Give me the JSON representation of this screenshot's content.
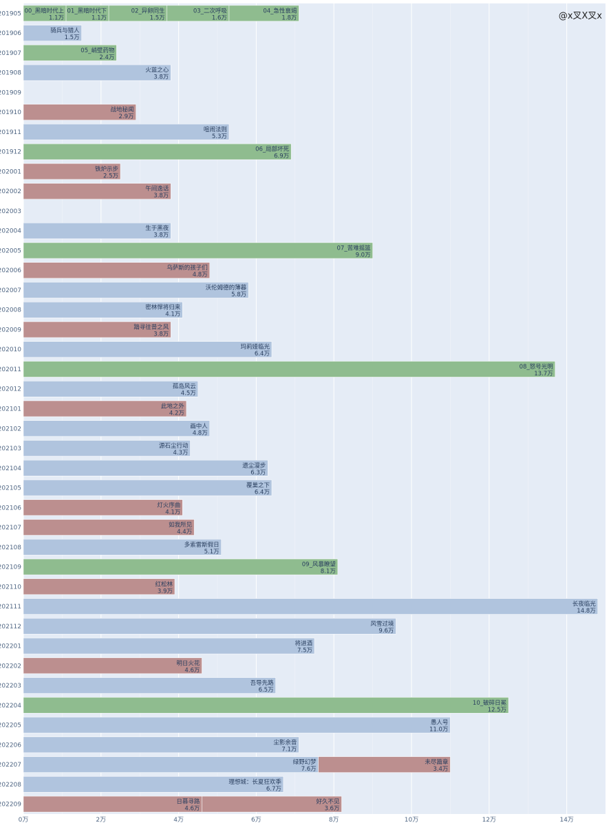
{
  "watermark": "@x叉X叉x",
  "colors": {
    "plot_bg": "#e5ecf6",
    "grid": "#ffffff",
    "blue": "#b0c4de",
    "red": "#bc8f8f",
    "green": "#8fbc8f"
  },
  "chart_data": {
    "type": "bar",
    "orientation": "horizontal",
    "stacked": true,
    "title": "",
    "xlabel": "",
    "ylabel": "",
    "xlim": [
      0,
      15
    ],
    "x_ticks": [
      0,
      2,
      4,
      6,
      8,
      10,
      12,
      14
    ],
    "x_tick_labels": [
      "0万",
      "2万",
      "4万",
      "6万",
      "8万",
      "10万",
      "12万",
      "14万"
    ],
    "grid": true,
    "categories": [
      "201905",
      "201906",
      "201907",
      "201908",
      "201909",
      "201910",
      "201911",
      "201912",
      "202001",
      "202002",
      "202003",
      "202004",
      "202005",
      "202006",
      "202007",
      "202008",
      "202009",
      "202010",
      "202011",
      "202012",
      "202101",
      "202102",
      "202103",
      "202104",
      "202105",
      "202106",
      "202107",
      "202108",
      "202109",
      "202110",
      "202111",
      "202112",
      "202201",
      "202202",
      "202203",
      "202204",
      "202205",
      "202206",
      "202207",
      "202208",
      "202209"
    ],
    "bars": [
      [
        {
          "name": "00_黑暗时代上",
          "value": 1.1,
          "color": "green",
          "label": "1.1万"
        },
        {
          "name": "01_黑暗时代下",
          "value": 1.1,
          "color": "green",
          "label": "1.1万"
        },
        {
          "name": "02_异卵同生",
          "value": 1.5,
          "color": "green",
          "label": "1.5万"
        },
        {
          "name": "03_二次呼吸",
          "value": 1.6,
          "color": "green",
          "label": "1.6万"
        },
        {
          "name": "04_急性衰竭",
          "value": 1.8,
          "color": "green",
          "label": "1.8万"
        }
      ],
      [
        {
          "name": "骑兵与猎人",
          "value": 1.5,
          "color": "blue",
          "label": "1.5万"
        }
      ],
      [
        {
          "name": "05_峭壁药物",
          "value": 2.4,
          "color": "green",
          "label": "2.4万"
        }
      ],
      [
        {
          "name": "火蓝之心",
          "value": 3.8,
          "color": "blue",
          "label": "3.8万"
        }
      ],
      [],
      [
        {
          "name": "战地秘闻",
          "value": 2.9,
          "color": "red",
          "label": "2.9万"
        }
      ],
      [
        {
          "name": "喧闹法则",
          "value": 5.3,
          "color": "blue",
          "label": "5.3万"
        }
      ],
      [
        {
          "name": "06_局部坏死",
          "value": 6.9,
          "color": "green",
          "label": "6.9万"
        }
      ],
      [
        {
          "name": "铁炉示步",
          "value": 2.5,
          "color": "red",
          "label": "2.5万"
        }
      ],
      [
        {
          "name": "午间逸话",
          "value": 3.8,
          "color": "red",
          "label": "3.8万"
        }
      ],
      [],
      [
        {
          "name": "生于黑夜",
          "value": 3.8,
          "color": "blue",
          "label": "3.8万"
        }
      ],
      [
        {
          "name": "07_苦难摇篮",
          "value": 9.0,
          "color": "green",
          "label": "9.0万"
        }
      ],
      [
        {
          "name": "乌萨斯的孩子们",
          "value": 4.8,
          "color": "red",
          "label": "4.8万"
        }
      ],
      [
        {
          "name": "沃伦姆德的薄暮",
          "value": 5.8,
          "color": "blue",
          "label": "5.8万"
        }
      ],
      [
        {
          "name": "密林悍将归来",
          "value": 4.1,
          "color": "blue",
          "label": "4.1万"
        }
      ],
      [
        {
          "name": "踏寻往昔之风",
          "value": 3.8,
          "color": "red",
          "label": "3.8万"
        }
      ],
      [
        {
          "name": "玛莉娅临光",
          "value": 6.4,
          "color": "blue",
          "label": "6.4万"
        }
      ],
      [
        {
          "name": "08_怒号光明",
          "value": 13.7,
          "color": "green",
          "label": "13.7万"
        }
      ],
      [
        {
          "name": "孤岛风云",
          "value": 4.5,
          "color": "blue",
          "label": "4.5万"
        }
      ],
      [
        {
          "name": "此地之外",
          "value": 4.2,
          "color": "red",
          "label": "4.2万"
        }
      ],
      [
        {
          "name": "画中人",
          "value": 4.8,
          "color": "blue",
          "label": "4.8万"
        }
      ],
      [
        {
          "name": "源石尘行动",
          "value": 4.3,
          "color": "blue",
          "label": "4.3万"
        }
      ],
      [
        {
          "name": "遗尘漫步",
          "value": 6.3,
          "color": "blue",
          "label": "6.3万"
        }
      ],
      [
        {
          "name": "覆巢之下",
          "value": 6.4,
          "color": "blue",
          "label": "6.4万"
        }
      ],
      [
        {
          "name": "灯火序曲",
          "value": 4.1,
          "color": "red",
          "label": "4.1万"
        }
      ],
      [
        {
          "name": "如我所见",
          "value": 4.4,
          "color": "red",
          "label": "4.4万"
        }
      ],
      [
        {
          "name": "多索雷斯假日",
          "value": 5.1,
          "color": "blue",
          "label": "5.1万"
        }
      ],
      [
        {
          "name": "09_风暴瞭望",
          "value": 8.1,
          "color": "green",
          "label": "8.1万"
        }
      ],
      [
        {
          "name": "红松林",
          "value": 3.9,
          "color": "red",
          "label": "3.9万"
        }
      ],
      [
        {
          "name": "长夜临光",
          "value": 14.8,
          "color": "blue",
          "label": "14.8万"
        }
      ],
      [
        {
          "name": "风雪过境",
          "value": 9.6,
          "color": "blue",
          "label": "9.6万"
        }
      ],
      [
        {
          "name": "将进酒",
          "value": 7.5,
          "color": "blue",
          "label": "7.5万"
        }
      ],
      [
        {
          "name": "明日火花",
          "value": 4.6,
          "color": "red",
          "label": "4.6万"
        }
      ],
      [
        {
          "name": "吾导先路",
          "value": 6.5,
          "color": "blue",
          "label": "6.5万"
        }
      ],
      [
        {
          "name": "10_破碎日冕",
          "value": 12.5,
          "color": "green",
          "label": "12.5万"
        }
      ],
      [
        {
          "name": "愚人号",
          "value": 11.0,
          "color": "blue",
          "label": "11.0万"
        }
      ],
      [
        {
          "name": "尘影余音",
          "value": 7.1,
          "color": "blue",
          "label": "7.1万"
        }
      ],
      [
        {
          "name": "绿野幻梦",
          "value": 7.6,
          "color": "blue",
          "label": "7.6万"
        },
        {
          "name": "未尽篇章",
          "value": 3.4,
          "color": "red",
          "label": "3.4万"
        }
      ],
      [
        {
          "name": "理想城：长夏狂欢季",
          "value": 6.7,
          "color": "blue",
          "label": "6.7万"
        }
      ],
      [
        {
          "name": "日暮寻路",
          "value": 4.6,
          "color": "red",
          "label": "4.6万"
        },
        {
          "name": "好久不见",
          "value": 3.6,
          "color": "red",
          "label": "3.6万"
        }
      ]
    ]
  }
}
